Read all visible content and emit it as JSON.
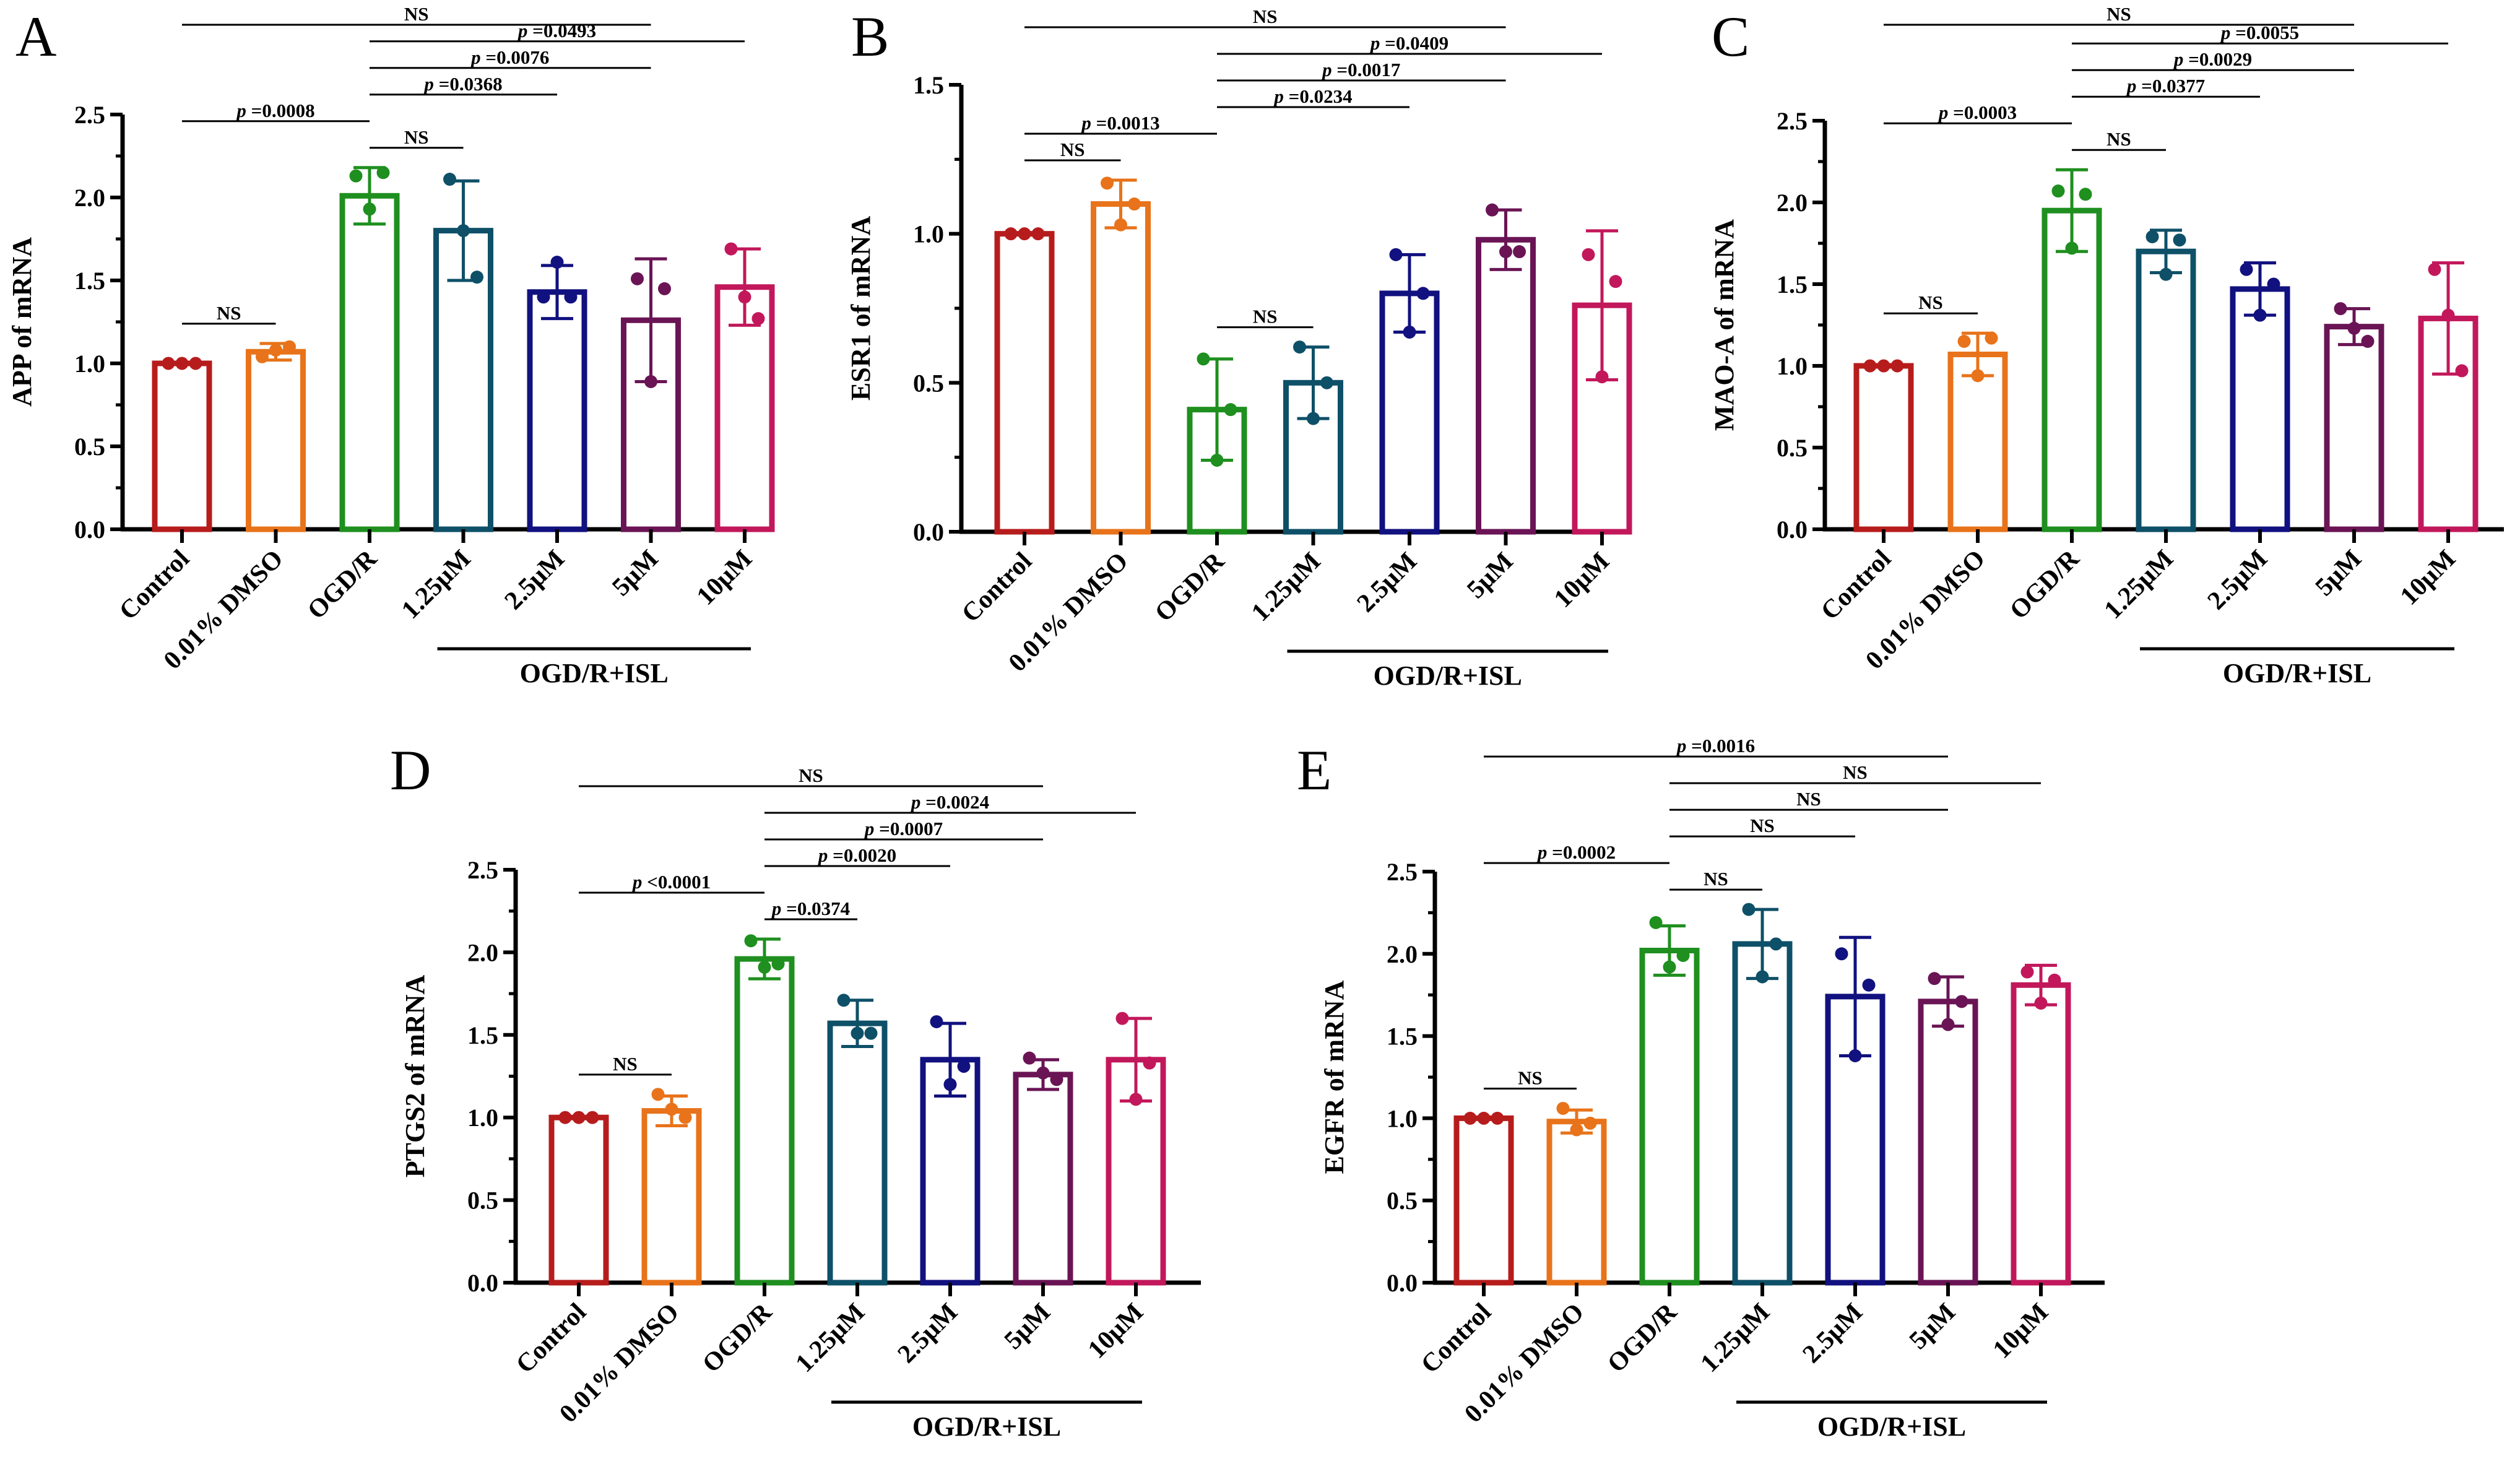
{
  "figure": {
    "categories": [
      "Control",
      "0.01% DMSO",
      "OGD/R",
      "1.25μM",
      "2.5μM",
      "5μM",
      "10μM"
    ],
    "colors": [
      "#b71c1c",
      "#e8731a",
      "#1f8f1f",
      "#0e5068",
      "#11117f",
      "#6a1455",
      "#c2185b"
    ],
    "group_label": "OGD/R+ISL"
  },
  "chart_data": [
    {
      "type": "bar",
      "panel": "A",
      "ylabel": "APP of mRNA",
      "ylim": [
        0,
        2.5
      ],
      "yticks": [
        "0.0",
        "0.5",
        "1.0",
        "1.5",
        "2.0",
        "2.5"
      ],
      "means": [
        1.0,
        1.07,
        2.01,
        1.8,
        1.43,
        1.26,
        1.46
      ],
      "sd": [
        0.0,
        0.05,
        0.17,
        0.3,
        0.16,
        0.37,
        0.23
      ],
      "points": [
        [
          1.0,
          1.0,
          1.0
        ],
        [
          1.04,
          1.08,
          1.1
        ],
        [
          2.13,
          1.93,
          2.15
        ],
        [
          2.11,
          1.8,
          1.52
        ],
        [
          1.4,
          1.61,
          1.4
        ],
        [
          1.51,
          0.89,
          1.45
        ],
        [
          1.69,
          1.4,
          1.27
        ]
      ],
      "comparisons": [
        {
          "from": 0,
          "to": 1,
          "label": "NS"
        },
        {
          "from": 0,
          "to": 2,
          "label": "p =0.0008"
        },
        {
          "from": 2,
          "to": 3,
          "label": "NS"
        },
        {
          "from": 2,
          "to": 4,
          "label": "p =0.0368"
        },
        {
          "from": 2,
          "to": 5,
          "label": "p =0.0076"
        },
        {
          "from": 2,
          "to": 6,
          "label": "p =0.0493"
        },
        {
          "from": 0,
          "to": 5,
          "label": "NS"
        }
      ]
    },
    {
      "type": "bar",
      "panel": "B",
      "ylabel": "ESR1 of mRNA",
      "ylim": [
        0,
        1.5
      ],
      "yticks": [
        "0.0",
        "0.5",
        "1.0",
        "1.5"
      ],
      "means": [
        1.0,
        1.1,
        0.41,
        0.5,
        0.8,
        0.98,
        0.76
      ],
      "sd": [
        0.0,
        0.08,
        0.17,
        0.12,
        0.13,
        0.1,
        0.25
      ],
      "points": [
        [
          1.0,
          1.0,
          1.0
        ],
        [
          1.17,
          1.03,
          1.1
        ],
        [
          0.58,
          0.24,
          0.41
        ],
        [
          0.62,
          0.38,
          0.5
        ],
        [
          0.93,
          0.67,
          0.8
        ],
        [
          1.08,
          0.94,
          0.94
        ],
        [
          0.93,
          0.52,
          0.84
        ]
      ],
      "comparisons": [
        {
          "from": 0,
          "to": 1,
          "label": "NS"
        },
        {
          "from": 0,
          "to": 2,
          "label": "p =0.0013"
        },
        {
          "from": 2,
          "to": 3,
          "label": "NS"
        },
        {
          "from": 2,
          "to": 4,
          "label": "p =0.0234"
        },
        {
          "from": 2,
          "to": 5,
          "label": "p =0.0017"
        },
        {
          "from": 2,
          "to": 6,
          "label": "p =0.0409"
        },
        {
          "from": 0,
          "to": 5,
          "label": "NS"
        }
      ]
    },
    {
      "type": "bar",
      "panel": "C",
      "ylabel": "MAO-A of mRNA",
      "ylim": [
        0,
        2.5
      ],
      "yticks": [
        "0.0",
        "0.5",
        "1.0",
        "1.5",
        "2.0",
        "2.5"
      ],
      "means": [
        1.0,
        1.07,
        1.95,
        1.7,
        1.47,
        1.24,
        1.29
      ],
      "sd": [
        0.0,
        0.13,
        0.25,
        0.13,
        0.16,
        0.11,
        0.34
      ],
      "points": [
        [
          1.0,
          1.0,
          1.0
        ],
        [
          1.15,
          0.94,
          1.17
        ],
        [
          2.07,
          1.72,
          2.05
        ],
        [
          1.79,
          1.56,
          1.77
        ],
        [
          1.59,
          1.31,
          1.5
        ],
        [
          1.35,
          1.23,
          1.15
        ],
        [
          1.59,
          1.31,
          0.97
        ]
      ],
      "comparisons": [
        {
          "from": 0,
          "to": 1,
          "label": "NS"
        },
        {
          "from": 0,
          "to": 2,
          "label": "p =0.0003"
        },
        {
          "from": 2,
          "to": 3,
          "label": "NS"
        },
        {
          "from": 2,
          "to": 4,
          "label": "p =0.0377"
        },
        {
          "from": 2,
          "to": 5,
          "label": "p =0.0029"
        },
        {
          "from": 2,
          "to": 6,
          "label": "p =0.0055"
        },
        {
          "from": 0,
          "to": 5,
          "label": "NS"
        }
      ]
    },
    {
      "type": "bar",
      "panel": "D",
      "ylabel": "PTGS2 of mRNA",
      "ylim": [
        0,
        2.5
      ],
      "yticks": [
        "0.0",
        "0.5",
        "1.0",
        "1.5",
        "2.0",
        "2.5"
      ],
      "means": [
        1.0,
        1.04,
        1.96,
        1.57,
        1.35,
        1.26,
        1.35
      ],
      "sd": [
        0.0,
        0.09,
        0.12,
        0.14,
        0.22,
        0.09,
        0.25
      ],
      "points": [
        [
          1.0,
          1.0,
          1.0
        ],
        [
          1.14,
          1.05,
          1.0
        ],
        [
          2.07,
          1.91,
          1.93
        ],
        [
          1.71,
          1.51,
          1.51
        ],
        [
          1.58,
          1.2,
          1.31
        ],
        [
          1.36,
          1.27,
          1.23
        ],
        [
          1.6,
          1.11,
          1.33
        ]
      ],
      "comparisons": [
        {
          "from": 0,
          "to": 1,
          "label": "NS"
        },
        {
          "from": 0,
          "to": 2,
          "label": "p <0.0001"
        },
        {
          "from": 2,
          "to": 3,
          "label": "p =0.0374"
        },
        {
          "from": 2,
          "to": 4,
          "label": "p =0.0020"
        },
        {
          "from": 2,
          "to": 5,
          "label": "p =0.0007"
        },
        {
          "from": 2,
          "to": 6,
          "label": "p =0.0024"
        },
        {
          "from": 0,
          "to": 5,
          "label": "NS"
        }
      ]
    },
    {
      "type": "bar",
      "panel": "E",
      "ylabel": "EGFR of mRNA",
      "ylim": [
        0,
        2.5
      ],
      "yticks": [
        "0.0",
        "0.5",
        "1.0",
        "1.5",
        "2.0",
        "2.5"
      ],
      "means": [
        1.0,
        0.98,
        2.02,
        2.06,
        1.74,
        1.71,
        1.81
      ],
      "sd": [
        0.0,
        0.07,
        0.15,
        0.21,
        0.36,
        0.15,
        0.12
      ],
      "points": [
        [
          1.0,
          1.0,
          1.0
        ],
        [
          1.06,
          0.93,
          0.97
        ],
        [
          2.19,
          1.92,
          1.99
        ],
        [
          2.27,
          1.86,
          2.06
        ],
        [
          2.0,
          1.38,
          1.81
        ],
        [
          1.85,
          1.57,
          1.71
        ],
        [
          1.89,
          1.7,
          1.84
        ]
      ],
      "comparisons": [
        {
          "from": 0,
          "to": 1,
          "label": "NS"
        },
        {
          "from": 0,
          "to": 2,
          "label": "p =0.0002"
        },
        {
          "from": 2,
          "to": 3,
          "label": "NS"
        },
        {
          "from": 2,
          "to": 4,
          "label": "NS"
        },
        {
          "from": 2,
          "to": 5,
          "label": "NS"
        },
        {
          "from": 2,
          "to": 6,
          "label": "NS"
        },
        {
          "from": 0,
          "to": 5,
          "label": "p =0.0016"
        }
      ]
    }
  ]
}
